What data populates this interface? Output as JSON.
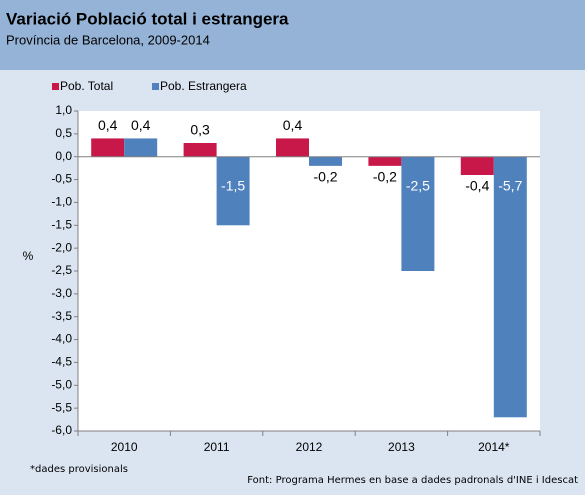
{
  "chart_data": {
    "type": "bar",
    "title": "Variació Població total i estrangera",
    "subtitle": "Província de Barcelona, 2009-2014",
    "y_label": "%",
    "categories": [
      "2010",
      "2011",
      "2012",
      "2013",
      "2014*"
    ],
    "series": [
      {
        "name": "Pob. Total",
        "color": "#c8184a",
        "values": [
          0.4,
          0.3,
          0.4,
          -0.2,
          -0.4
        ],
        "value_labels": [
          "0,4",
          "0,3",
          "0,4",
          "-0,2",
          "-0,4"
        ]
      },
      {
        "name": "Pob. Estrangera",
        "color": "#4f81bd",
        "values": [
          0.4,
          -1.5,
          -0.2,
          -2.5,
          -5.7
        ],
        "value_labels": [
          "0,4",
          "-1,5",
          "-0,2",
          "-2,5",
          "-5,7"
        ]
      }
    ],
    "ylim": [
      -6.0,
      1.0
    ],
    "yticks": [
      {
        "value": 1.0,
        "label": "1,0"
      },
      {
        "value": 0.5,
        "label": "0,5"
      },
      {
        "value": 0.0,
        "label": "0,0"
      },
      {
        "value": -0.5,
        "label": "-0,5"
      },
      {
        "value": -1.0,
        "label": "-1,0"
      },
      {
        "value": -1.5,
        "label": "-1,5"
      },
      {
        "value": -2.0,
        "label": "-2,0"
      },
      {
        "value": -2.5,
        "label": "-2,5"
      },
      {
        "value": -3.0,
        "label": "-3,0"
      },
      {
        "value": -3.5,
        "label": "-3,5"
      },
      {
        "value": -4.0,
        "label": "-4,0"
      },
      {
        "value": -4.5,
        "label": "-4,5"
      },
      {
        "value": -5.0,
        "label": "-5,0"
      },
      {
        "value": -5.5,
        "label": "-5,5"
      },
      {
        "value": -6.0,
        "label": "-6,0"
      }
    ],
    "grid": false,
    "legend": "top-left",
    "notes": [
      "*dades provisionals",
      "Font: Programa Hermes en base a dades padronals d'INE i Idescat"
    ]
  }
}
